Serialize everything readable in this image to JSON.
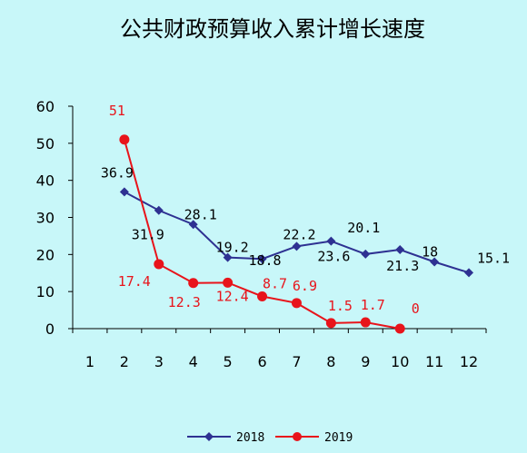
{
  "chart_data": {
    "type": "line",
    "title": "公共财政预算收入累计增长速度",
    "xlabel": "",
    "ylabel": "",
    "categories": [
      "1",
      "2",
      "3",
      "4",
      "5",
      "6",
      "7",
      "8",
      "9",
      "10",
      "11",
      "12"
    ],
    "ylim": [
      0,
      60
    ],
    "yticks": [
      "0",
      "10",
      "20",
      "30",
      "40",
      "50",
      "60"
    ],
    "grid": false,
    "legend_position": "bottom",
    "series": [
      {
        "name": "2018",
        "color": "#2e3192",
        "marker": "diamond",
        "values": [
          null,
          36.9,
          31.9,
          28.1,
          19.2,
          18.8,
          22.2,
          23.6,
          20.1,
          21.3,
          18,
          15.1
        ],
        "data_labels": [
          "",
          "36.9",
          "31.9",
          "28.1",
          "19.2",
          "18.8",
          "22.2",
          "23.6",
          "20.1",
          "21.3",
          "18",
          "15.1"
        ]
      },
      {
        "name": "2019",
        "color": "#e8141b",
        "marker": "circle",
        "values": [
          null,
          51,
          17.4,
          12.3,
          12.4,
          8.7,
          6.9,
          1.5,
          1.7,
          0,
          null,
          null
        ],
        "data_labels": [
          "",
          "51",
          "17.4",
          "12.3",
          "12.4",
          "8.7",
          "6.9",
          "1.5",
          "1.7",
          "0",
          "",
          ""
        ]
      }
    ]
  }
}
